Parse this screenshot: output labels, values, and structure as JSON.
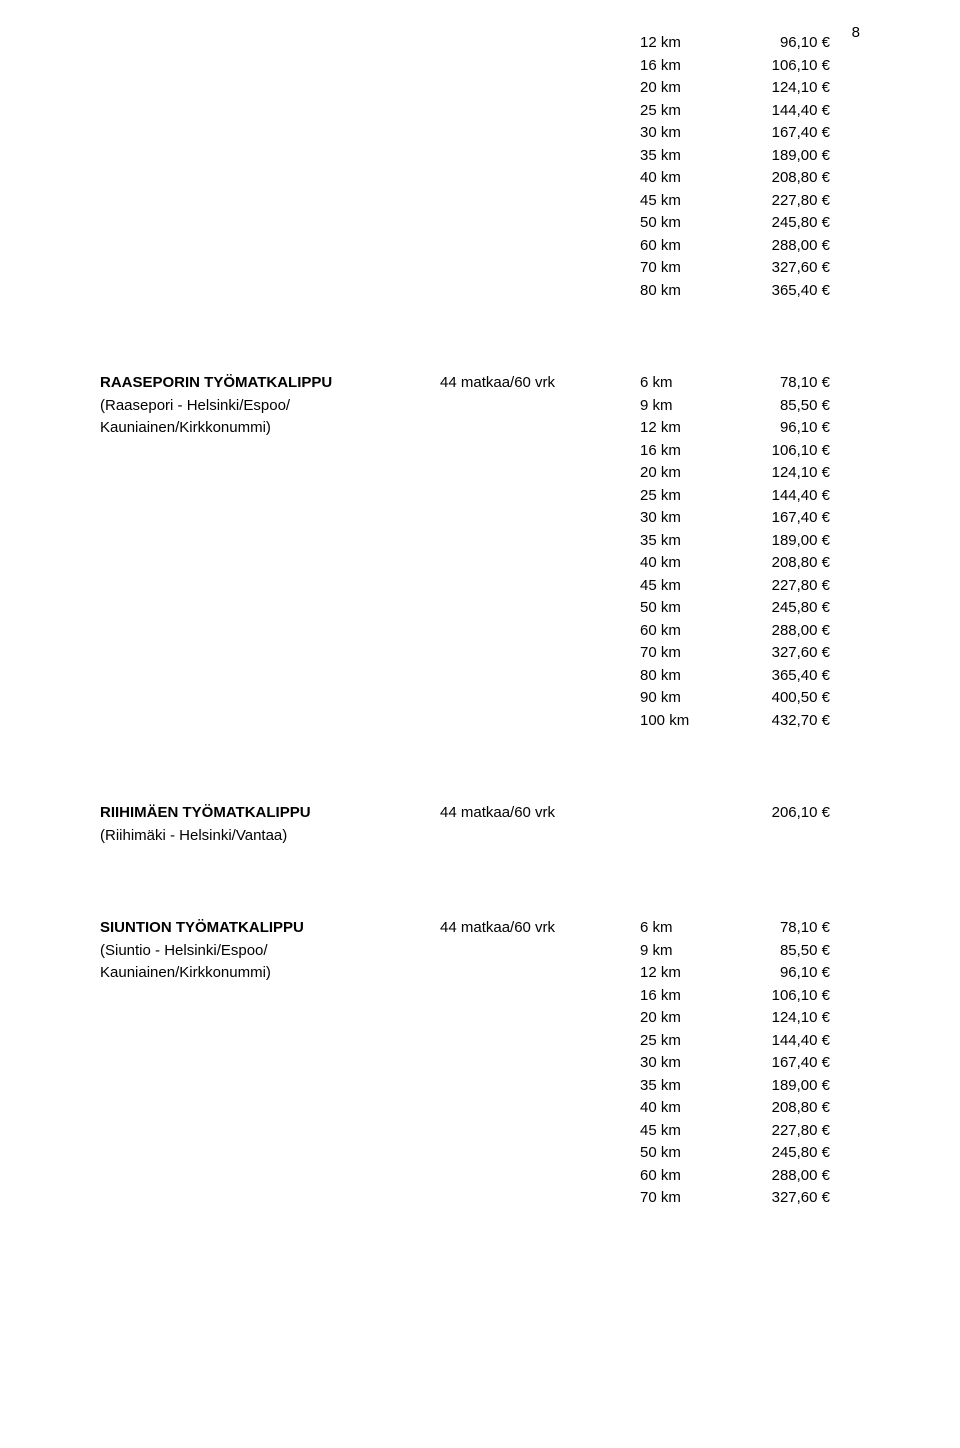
{
  "page_number": "8",
  "block1": {
    "rows": [
      {
        "dist": "12 km",
        "price": "96,10 €"
      },
      {
        "dist": "16 km",
        "price": "106,10 €"
      },
      {
        "dist": "20 km",
        "price": "124,10 €"
      },
      {
        "dist": "25 km",
        "price": "144,40 €"
      },
      {
        "dist": "30 km",
        "price": "167,40 €"
      },
      {
        "dist": "35 km",
        "price": "189,00 €"
      },
      {
        "dist": "40 km",
        "price": "208,80 €"
      },
      {
        "dist": "45 km",
        "price": "227,80 €"
      },
      {
        "dist": "50 km",
        "price": "245,80 €"
      },
      {
        "dist": "60 km",
        "price": "288,00 €"
      },
      {
        "dist": "70 km",
        "price": "327,60 €"
      },
      {
        "dist": "80 km",
        "price": "365,40 €"
      }
    ]
  },
  "block2": {
    "title": "RAASEPORIN TYÖMATKALIPPU",
    "sub1": "(Raasepori - Helsinki/Espoo/",
    "sub2": "Kauniainen/Kirkkonummi)",
    "mid": "44 matkaa/60 vrk",
    "rows": [
      {
        "dist": "6 km",
        "price": "78,10 €"
      },
      {
        "dist": "9 km",
        "price": "85,50 €"
      },
      {
        "dist": "12 km",
        "price": "96,10 €"
      },
      {
        "dist": "16 km",
        "price": "106,10 €"
      },
      {
        "dist": "20 km",
        "price": "124,10 €"
      },
      {
        "dist": "25 km",
        "price": "144,40 €"
      },
      {
        "dist": "30 km",
        "price": "167,40 €"
      },
      {
        "dist": "35 km",
        "price": "189,00 €"
      },
      {
        "dist": "40 km",
        "price": "208,80 €"
      },
      {
        "dist": "45 km",
        "price": "227,80 €"
      },
      {
        "dist": "50 km",
        "price": "245,80 €"
      },
      {
        "dist": "60 km",
        "price": "288,00 €"
      },
      {
        "dist": "70 km",
        "price": "327,60 €"
      },
      {
        "dist": "80 km",
        "price": "365,40 €"
      },
      {
        "dist": "90 km",
        "price": "400,50 €"
      },
      {
        "dist": "100 km",
        "price": "432,70 €"
      }
    ]
  },
  "block3": {
    "title": "RIIHIMÄEN TYÖMATKALIPPU",
    "sub1": "(Riihimäki - Helsinki/Vantaa)",
    "mid": "44 matkaa/60 vrk",
    "price": "206,10 €"
  },
  "block4": {
    "title": "SIUNTION TYÖMATKALIPPU",
    "sub1": "(Siuntio - Helsinki/Espoo/",
    "sub2": "Kauniainen/Kirkkonummi)",
    "mid": "44 matkaa/60 vrk",
    "rows": [
      {
        "dist": "6 km",
        "price": "78,10 €"
      },
      {
        "dist": "9 km",
        "price": "85,50 €"
      },
      {
        "dist": "12 km",
        "price": "96,10 €"
      },
      {
        "dist": "16 km",
        "price": "106,10 €"
      },
      {
        "dist": "20 km",
        "price": "124,10 €"
      },
      {
        "dist": "25 km",
        "price": "144,40 €"
      },
      {
        "dist": "30 km",
        "price": "167,40 €"
      },
      {
        "dist": "35 km",
        "price": "189,00 €"
      },
      {
        "dist": "40 km",
        "price": "208,80 €"
      },
      {
        "dist": "45 km",
        "price": "227,80 €"
      },
      {
        "dist": "50 km",
        "price": "245,80 €"
      },
      {
        "dist": "60 km",
        "price": "288,00 €"
      },
      {
        "dist": "70 km",
        "price": "327,60 €"
      }
    ]
  }
}
